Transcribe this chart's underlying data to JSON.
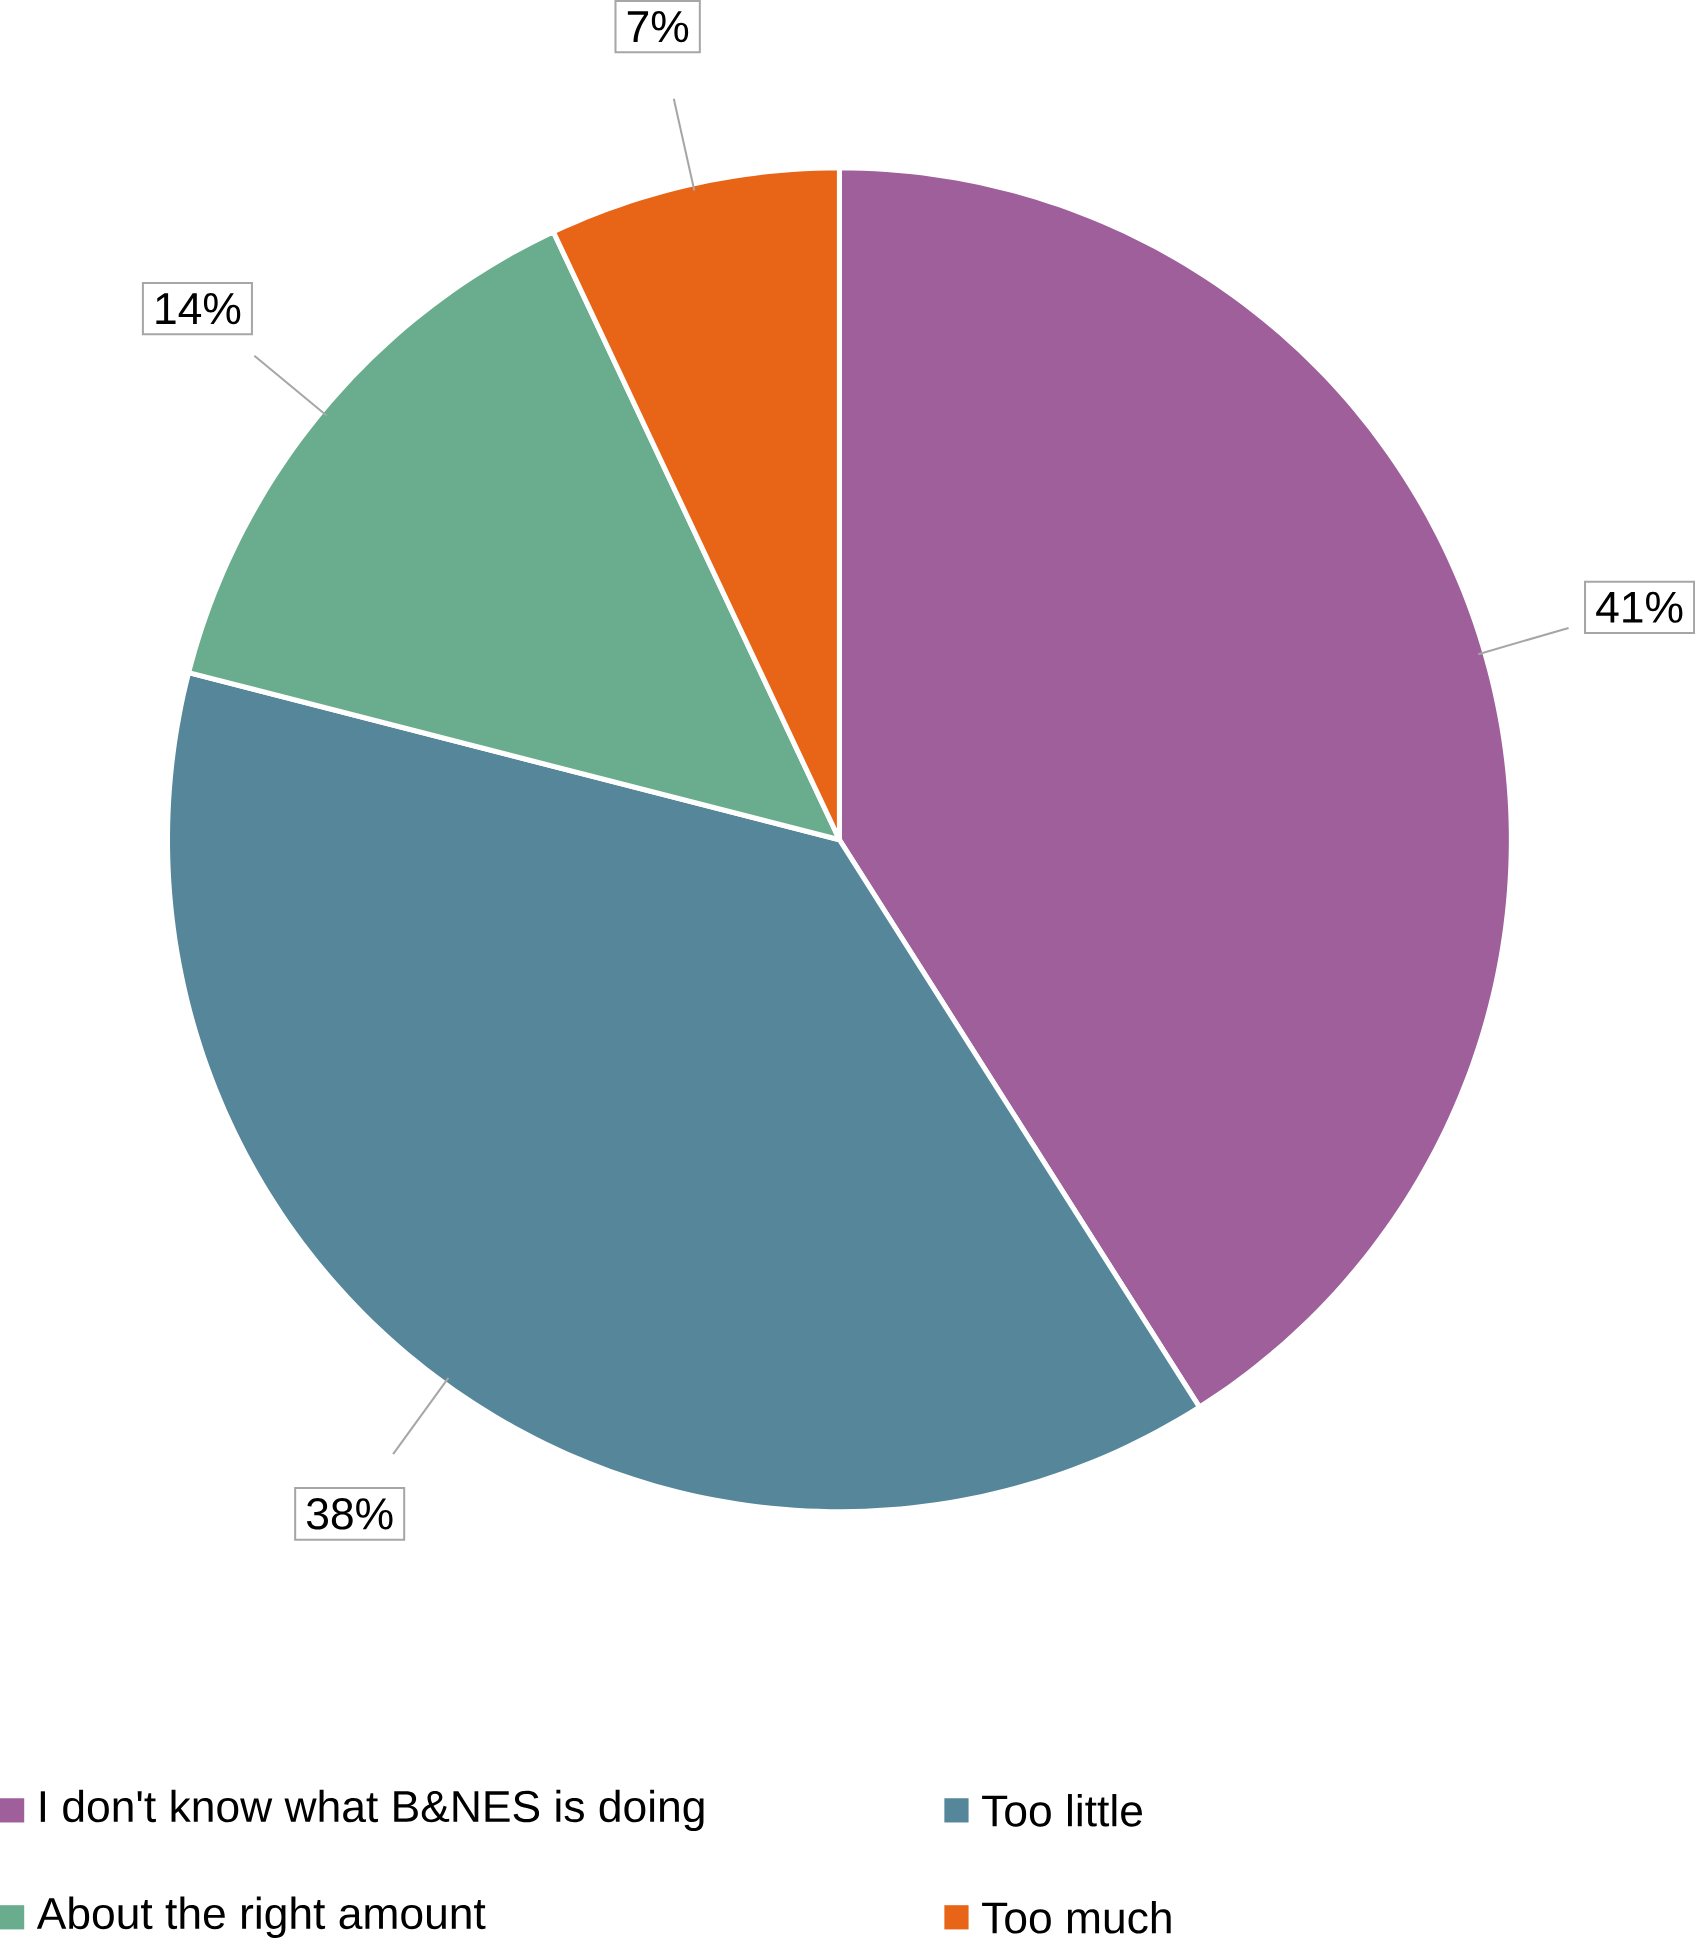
{
  "chart_data": {
    "type": "pie",
    "categories": [
      "I don't know what B&NES is doing",
      "Too little",
      "About the right amount",
      "Too much"
    ],
    "values": [
      41,
      38,
      14,
      7
    ],
    "colors": [
      "#9e5f9b",
      "#55869a",
      "#6aad8e",
      "#e86417"
    ],
    "value_labels": [
      "41%",
      "38%",
      "14%",
      "7%"
    ],
    "legend": "bottom"
  }
}
